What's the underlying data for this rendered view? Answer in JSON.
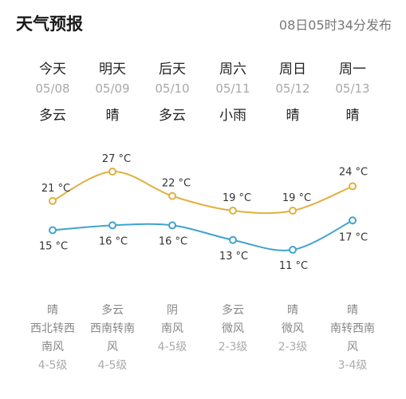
{
  "header": {
    "title": "天气预报",
    "updated": "08日05时34分发布"
  },
  "days": [
    {
      "day": "今天",
      "date": "05/08",
      "weather": "多云",
      "night_weather": "晴",
      "wind_line1": "西北转西",
      "wind_line2": "南风",
      "wind_level": "4-5级"
    },
    {
      "day": "明天",
      "date": "05/09",
      "weather": "晴",
      "night_weather": "多云",
      "wind_line1": "西南转南",
      "wind_line2": "风",
      "wind_level": "4-5级"
    },
    {
      "day": "后天",
      "date": "05/10",
      "weather": "多云",
      "night_weather": "阴",
      "wind_line1": "南风",
      "wind_line2": "",
      "wind_level": "4-5级"
    },
    {
      "day": "周六",
      "date": "05/11",
      "weather": "小雨",
      "night_weather": "多云",
      "wind_line1": "微风",
      "wind_line2": "",
      "wind_level": "2-3级"
    },
    {
      "day": "周日",
      "date": "05/12",
      "weather": "晴",
      "night_weather": "晴",
      "wind_line1": "微风",
      "wind_line2": "",
      "wind_level": "2-3级"
    },
    {
      "day": "周一",
      "date": "05/13",
      "weather": "晴",
      "night_weather": "晴",
      "wind_line1": "南转西南",
      "wind_line2": "风",
      "wind_level": "3-4级"
    }
  ],
  "chart_data": {
    "type": "line",
    "categories": [
      "05/08",
      "05/09",
      "05/10",
      "05/11",
      "05/12",
      "05/13"
    ],
    "unit": "°C",
    "series": [
      {
        "values": [
          21,
          27,
          22,
          19,
          19,
          24
        ],
        "color": "#e0b040"
      },
      {
        "values": [
          15,
          16,
          16,
          13,
          11,
          17
        ],
        "color": "#3fa3cf"
      }
    ],
    "high_labels": [
      "21 °C",
      "27 °C",
      "22 °C",
      "19 °C",
      "19 °C",
      "24 °C"
    ],
    "low_labels": [
      "15 °C",
      "16 °C",
      "16 °C",
      "13 °C",
      "11 °C",
      "17 °C"
    ]
  }
}
